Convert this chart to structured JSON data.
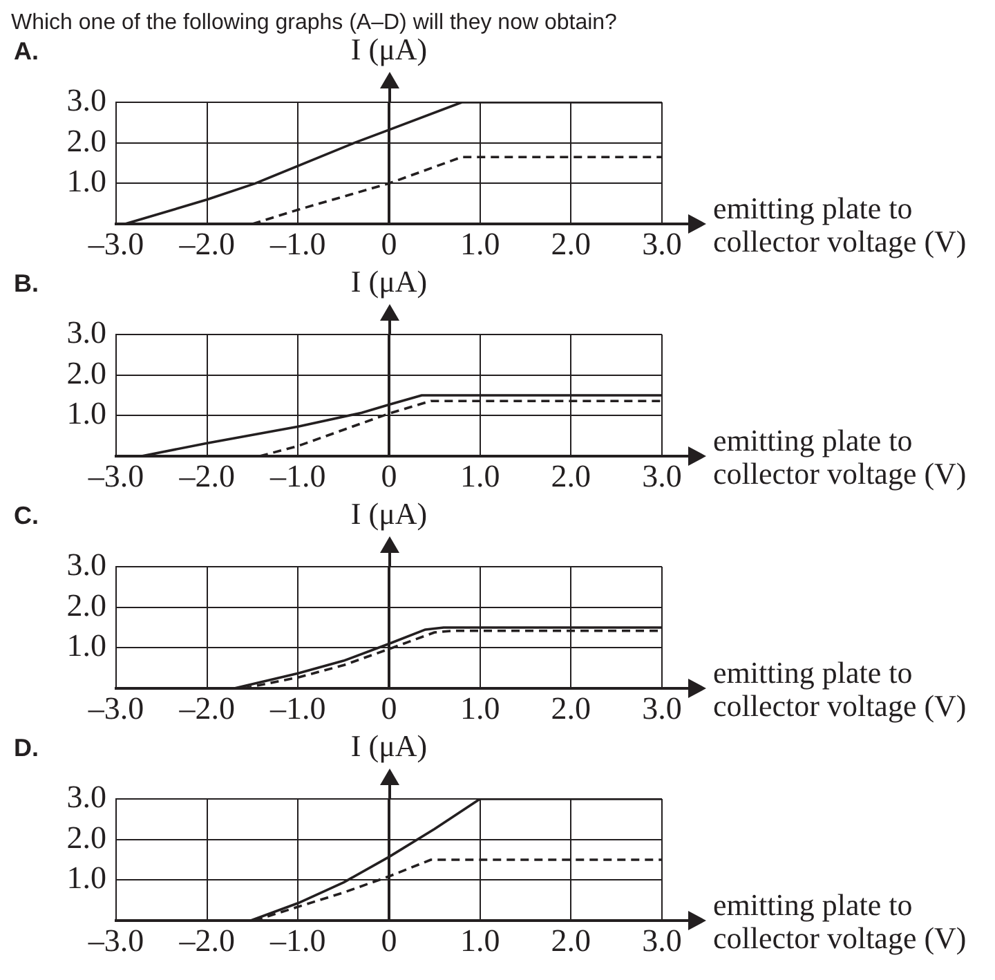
{
  "chart_data": [
    {
      "type": "line",
      "title": "A.",
      "annotations": [
        "Which one of the following graphs (A–D) will they now obtain?"
      ],
      "xlabel": "emitting plate to collector voltage (V)",
      "ylabel": "I (μA)",
      "xlim": [
        -3,
        3
      ],
      "ylim": [
        0,
        3
      ],
      "xticks": [
        {
          "value": -3,
          "label": "–3.0"
        },
        {
          "value": -2,
          "label": "–2.0"
        },
        {
          "value": -1,
          "label": "–1.0"
        },
        {
          "value": 0,
          "label": "0"
        },
        {
          "value": 1,
          "label": "1.0"
        },
        {
          "value": 2,
          "label": "2.0"
        },
        {
          "value": 3,
          "label": "3.0"
        }
      ],
      "yticks": [
        {
          "value": 1,
          "label": "1.0"
        },
        {
          "value": 2,
          "label": "2.0"
        },
        {
          "value": 3,
          "label": "3.0"
        }
      ],
      "grid": true,
      "marker": "none",
      "series": [
        {
          "color": "#231f20",
          "line_style": "solid",
          "x": [
            -2.9,
            -2,
            -1.47,
            -0.38,
            0,
            0.8,
            3
          ],
          "values": [
            0,
            0.6,
            1,
            2,
            2.32,
            3,
            3
          ]
        },
        {
          "color": "#231f20",
          "line_style": "dashed",
          "x": [
            -1.5,
            -1,
            0,
            0.8,
            3
          ],
          "values": [
            0,
            0.35,
            1.0,
            1.65,
            1.65
          ]
        }
      ]
    },
    {
      "type": "line",
      "title": "B.",
      "xlabel": "emitting plate to collector voltage (V)",
      "ylabel": "I (μA)",
      "xlim": [
        -3,
        3
      ],
      "ylim": [
        0,
        3
      ],
      "xticks": [
        {
          "value": -3,
          "label": "–3.0"
        },
        {
          "value": -2,
          "label": "–2.0"
        },
        {
          "value": -1,
          "label": "–1.0"
        },
        {
          "value": 0,
          "label": "0"
        },
        {
          "value": 1,
          "label": "1.0"
        },
        {
          "value": 2,
          "label": "2.0"
        },
        {
          "value": 3,
          "label": "3.0"
        }
      ],
      "yticks": [
        {
          "value": 1,
          "label": "1.0"
        },
        {
          "value": 2,
          "label": "2.0"
        },
        {
          "value": 3,
          "label": "3.0"
        }
      ],
      "grid": true,
      "marker": "none",
      "series": [
        {
          "color": "#231f20",
          "line_style": "solid",
          "x": [
            -2.72,
            -2,
            -1,
            -0.3,
            0,
            0.36,
            3
          ],
          "values": [
            0,
            0.32,
            0.73,
            1.07,
            1.27,
            1.5,
            1.5
          ]
        },
        {
          "color": "#231f20",
          "line_style": "dashed",
          "x": [
            -1.42,
            -1,
            0,
            0.46,
            3
          ],
          "values": [
            0,
            0.25,
            1.05,
            1.36,
            1.36
          ]
        }
      ]
    },
    {
      "type": "line",
      "title": "C.",
      "xlabel": "emitting plate to collector voltage (V)",
      "ylabel": "I (μA)",
      "xlim": [
        -3,
        3
      ],
      "ylim": [
        0,
        3
      ],
      "xticks": [
        {
          "value": -3,
          "label": "–3.0"
        },
        {
          "value": -2,
          "label": "–2.0"
        },
        {
          "value": -1,
          "label": "–1.0"
        },
        {
          "value": 0,
          "label": "0"
        },
        {
          "value": 1,
          "label": "1.0"
        },
        {
          "value": 2,
          "label": "2.0"
        },
        {
          "value": 3,
          "label": "3.0"
        }
      ],
      "yticks": [
        {
          "value": 1,
          "label": "1.0"
        },
        {
          "value": 2,
          "label": "2.0"
        },
        {
          "value": 3,
          "label": "3.0"
        }
      ],
      "grid": true,
      "marker": "none",
      "series": [
        {
          "color": "#231f20",
          "line_style": "solid",
          "x": [
            -1.7,
            -1,
            -0.5,
            0,
            0.4,
            0.6,
            3
          ],
          "values": [
            0,
            0.37,
            0.68,
            1.1,
            1.45,
            1.5,
            1.5
          ]
        },
        {
          "color": "#231f20",
          "line_style": "dashed",
          "x": [
            -1.6,
            -1,
            -0.5,
            0,
            0.5,
            0.7,
            3
          ],
          "values": [
            0,
            0.27,
            0.57,
            0.97,
            1.38,
            1.42,
            1.42
          ]
        }
      ]
    },
    {
      "type": "line",
      "title": "D.",
      "xlabel": "emitting plate to collector voltage (V)",
      "ylabel": "I (μA)",
      "xlim": [
        -3,
        3
      ],
      "ylim": [
        0,
        3
      ],
      "xticks": [
        {
          "value": -3,
          "label": "–3.0"
        },
        {
          "value": -2,
          "label": "–2.0"
        },
        {
          "value": -1,
          "label": "–1.0"
        },
        {
          "value": 0,
          "label": "0"
        },
        {
          "value": 1,
          "label": "1.0"
        },
        {
          "value": 2,
          "label": "2.0"
        },
        {
          "value": 3,
          "label": "3.0"
        }
      ],
      "yticks": [
        {
          "value": 1,
          "label": "1.0"
        },
        {
          "value": 2,
          "label": "2.0"
        },
        {
          "value": 3,
          "label": "3.0"
        }
      ],
      "grid": true,
      "marker": "none",
      "series": [
        {
          "color": "#231f20",
          "line_style": "solid",
          "x": [
            -1.52,
            -1,
            -0.5,
            0,
            0.5,
            1,
            3
          ],
          "values": [
            0,
            0.43,
            0.94,
            1.57,
            2.26,
            3,
            3
          ]
        },
        {
          "color": "#231f20",
          "line_style": "dashed",
          "x": [
            -1.48,
            -1,
            -0.5,
            0,
            0.46,
            3
          ],
          "values": [
            0,
            0.34,
            0.69,
            1.09,
            1.5,
            1.5
          ]
        }
      ]
    }
  ]
}
